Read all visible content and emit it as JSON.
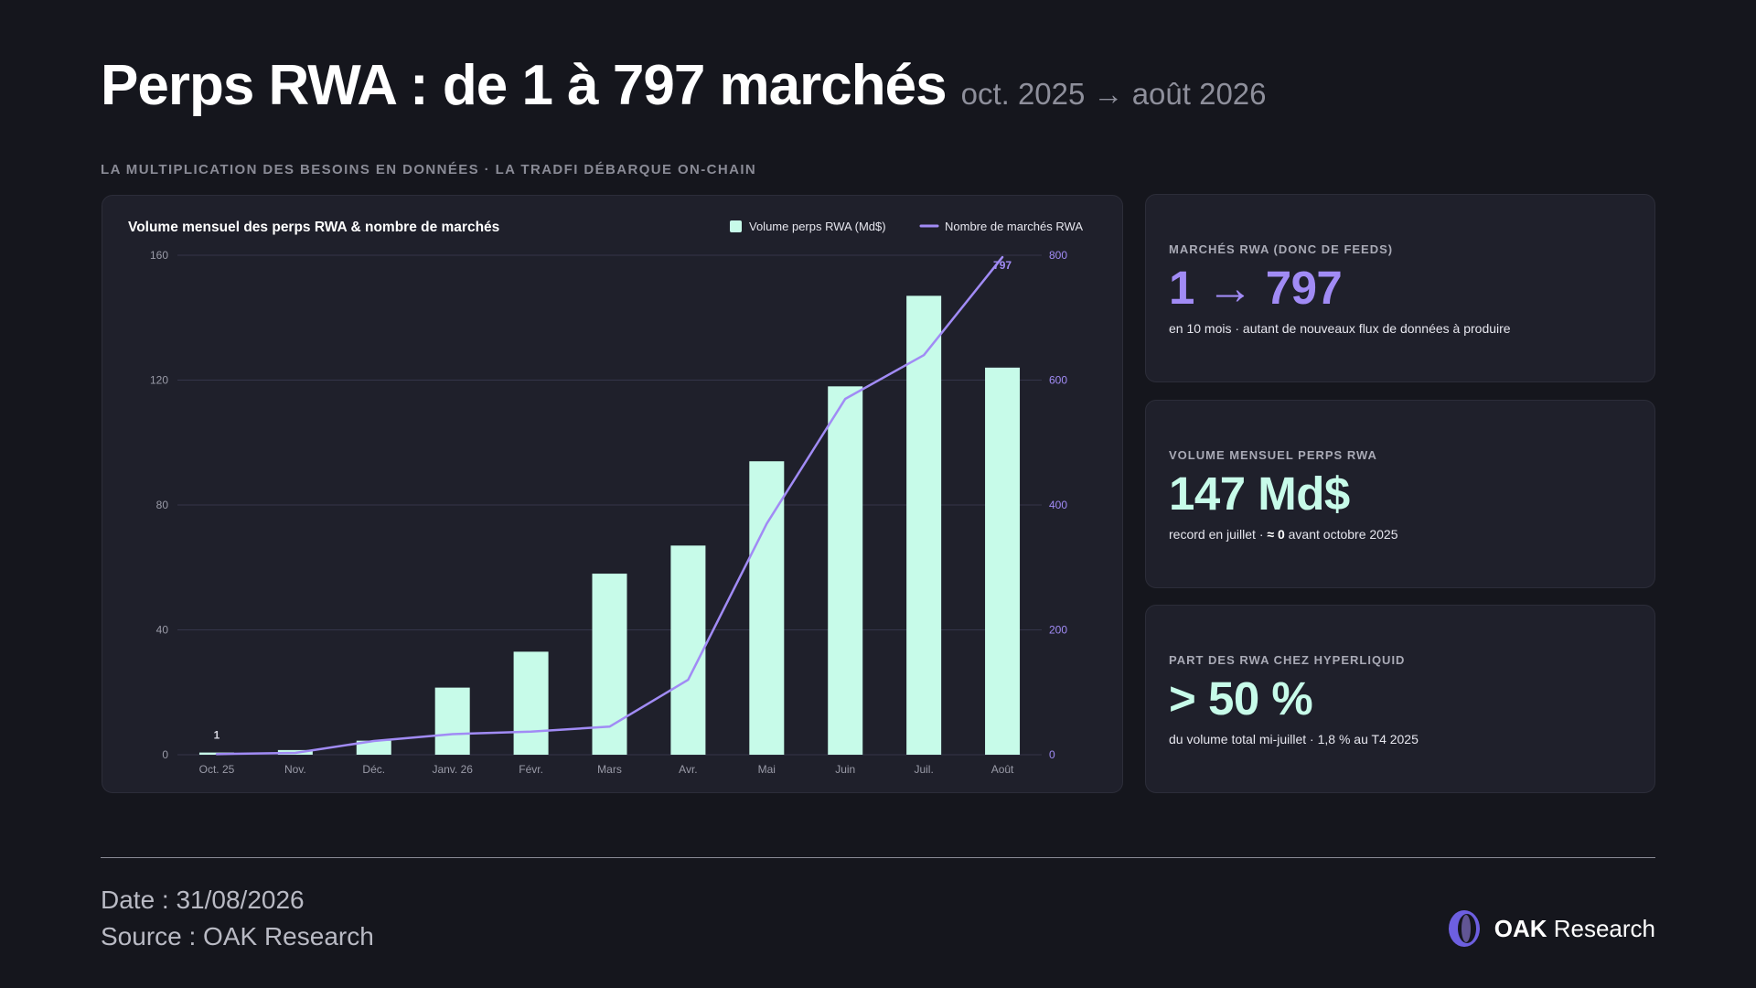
{
  "header": {
    "title": "Perps RWA : de 1 à 797 marchés",
    "subtitle": "oct. 2025 → août 2026"
  },
  "kicker": "LA MULTIPLICATION DES BESOINS EN DONNÉES · LA TRADFI DÉBARQUE ON-CHAIN",
  "chart_data": {
    "type": "bar+line",
    "title": "Volume mensuel des perps RWA & nombre de marchés",
    "categories": [
      "Oct. 25",
      "Nov.",
      "Déc.",
      "Janv. 26",
      "Févr.",
      "Mars",
      "Avr.",
      "Mai",
      "Juin",
      "Juil.",
      "Août"
    ],
    "series": [
      {
        "name": "Volume perps RWA (Md$)",
        "type": "bar",
        "axis": "left",
        "color": "#c7fbe9",
        "values": [
          0.7,
          1.5,
          4.5,
          21.5,
          33,
          58,
          67,
          94,
          118,
          147,
          124
        ]
      },
      {
        "name": "Nombre de marchés RWA",
        "type": "line",
        "axis": "right",
        "color": "#a18bf5",
        "values": [
          1,
          3,
          22,
          33,
          37,
          45,
          120,
          370,
          570,
          640,
          797
        ]
      }
    ],
    "y_left": {
      "min": 0,
      "max": 160,
      "ticks": [
        "0",
        "40",
        "80",
        "120",
        "160"
      ]
    },
    "y_right": {
      "min": 0,
      "max": 800,
      "ticks": [
        "0",
        "200",
        "400",
        "600",
        "800"
      ]
    },
    "data_labels": {
      "first_line": "1",
      "last_line": "797"
    },
    "legend_position": "top-right",
    "grid": true
  },
  "cards": [
    {
      "label": "MARCHÉS RWA (DONC DE FEEDS)",
      "value": "1 → 797",
      "note": "en 10 mois · autant de nouveaux flux de données à produire"
    },
    {
      "label": "VOLUME MENSUEL PERPS RWA",
      "value": "147 Md$",
      "note_pre": "record en juillet · ",
      "note_bold": "≈ 0",
      "note_post": " avant octobre 2025"
    },
    {
      "label": "PART DES RWA CHEZ HYPERLIQUID",
      "value": "> 50 %",
      "note": "du volume total mi-juillet · 1,8 % au T4 2025"
    }
  ],
  "footer": {
    "date": "Date : 31/08/2026",
    "source": "Source : OAK Research",
    "brand_bold": "OAK",
    "brand_rest": " Research"
  }
}
